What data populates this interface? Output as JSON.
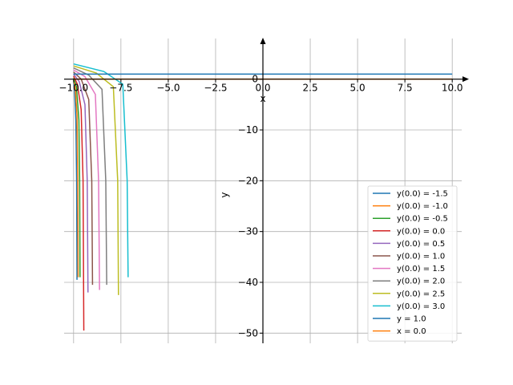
{
  "chart_data": {
    "type": "line",
    "xlabel": "x",
    "ylabel": "y",
    "xlim": [
      -10.5,
      10.5
    ],
    "ylim": [
      -52,
      8
    ],
    "grid": true,
    "legend_position": "lower-right",
    "xticks": [
      -10,
      -7.5,
      -5,
      -2.5,
      0,
      2.5,
      5,
      7.5,
      10
    ],
    "xtick_labels": [
      "−10.0",
      "−7.5",
      "−5.0",
      "−2.5",
      "0.0",
      "2.5",
      "5.0",
      "7.5",
      "10.0"
    ],
    "yticks": [
      0,
      -10,
      -20,
      -30,
      -40,
      -50
    ],
    "ytick_labels": [
      "0",
      "−10",
      "−20",
      "−30",
      "−40",
      "−50"
    ],
    "series": [
      {
        "name": "y(0.0) = -1.5",
        "color": "#1f77b4",
        "points": [
          [
            -10,
            -0.6
          ],
          [
            -9.95,
            -2
          ],
          [
            -9.88,
            -8
          ],
          [
            -9.84,
            -20
          ],
          [
            -9.82,
            -39.5
          ]
        ]
      },
      {
        "name": "y(0.0) = -1.0",
        "color": "#ff7f0e",
        "points": [
          [
            -10,
            -0.2
          ],
          [
            -9.92,
            -1.5
          ],
          [
            -9.82,
            -7
          ],
          [
            -9.78,
            -20
          ],
          [
            -9.76,
            -39
          ]
        ]
      },
      {
        "name": "y(0.0) = -0.5",
        "color": "#2ca02c",
        "points": [
          [
            -10,
            0.2
          ],
          [
            -9.85,
            -1.5
          ],
          [
            -9.72,
            -8
          ],
          [
            -9.68,
            -20
          ],
          [
            -9.66,
            -39
          ]
        ]
      },
      {
        "name": "y(0.0) = 0.0",
        "color": "#d62728",
        "points": [
          [
            -10,
            0.6
          ],
          [
            -9.8,
            -1
          ],
          [
            -9.6,
            -6
          ],
          [
            -9.5,
            -20
          ],
          [
            -9.46,
            -49.5
          ]
        ]
      },
      {
        "name": "y(0.0) = 0.5",
        "color": "#9467bd",
        "points": [
          [
            -10,
            1.0
          ],
          [
            -9.7,
            -0.5
          ],
          [
            -9.4,
            -5
          ],
          [
            -9.28,
            -20
          ],
          [
            -9.24,
            -42
          ]
        ]
      },
      {
        "name": "y(0.0) = 1.0",
        "color": "#8c564b",
        "points": [
          [
            -10,
            1.4
          ],
          [
            -9.6,
            0
          ],
          [
            -9.2,
            -4
          ],
          [
            -9.04,
            -20
          ],
          [
            -9.0,
            -40.5
          ]
        ]
      },
      {
        "name": "y(0.0) = 1.5",
        "color": "#e377c2",
        "points": [
          [
            -10,
            1.8
          ],
          [
            -9.4,
            0.5
          ],
          [
            -8.85,
            -3
          ],
          [
            -8.68,
            -20
          ],
          [
            -8.63,
            -41.5
          ]
        ]
      },
      {
        "name": "y(0.0) = 2.0",
        "color": "#7f7f7f",
        "points": [
          [
            -10,
            2.2
          ],
          [
            -9.2,
            0.8
          ],
          [
            -8.5,
            -2
          ],
          [
            -8.3,
            -20
          ],
          [
            -8.25,
            -40.5
          ]
        ]
      },
      {
        "name": "y(0.0) = 2.5",
        "color": "#bcbd22",
        "points": [
          [
            -10,
            2.6
          ],
          [
            -8.8,
            1.2
          ],
          [
            -7.9,
            -1.5
          ],
          [
            -7.67,
            -20
          ],
          [
            -7.63,
            -42.5
          ]
        ]
      },
      {
        "name": "y(0.0) = 3.0",
        "color": "#17becf",
        "points": [
          [
            -10,
            3.0
          ],
          [
            -8.4,
            1.5
          ],
          [
            -7.4,
            -1
          ],
          [
            -7.17,
            -20
          ],
          [
            -7.12,
            -39
          ]
        ]
      },
      {
        "name": "y = 1.0",
        "color": "#1f77b4",
        "points": [
          [
            -10,
            1.0
          ],
          [
            10,
            1.0
          ]
        ]
      },
      {
        "name": "x = 0.0",
        "color": "#ff7f0e",
        "points": [
          [
            -10,
            0.0
          ],
          [
            10,
            0.0
          ]
        ]
      }
    ]
  }
}
